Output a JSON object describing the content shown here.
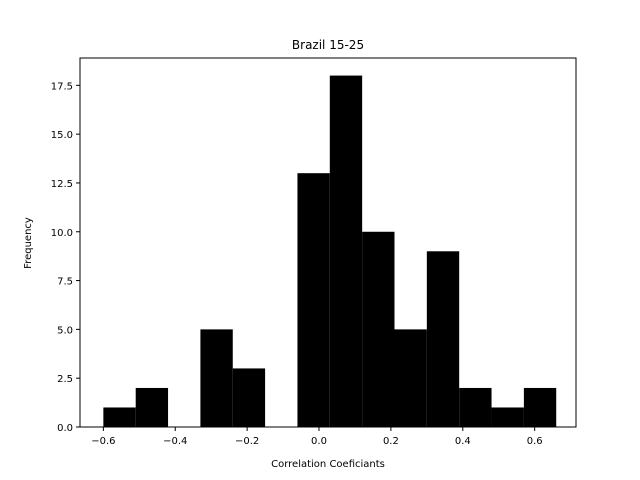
{
  "chart_data": {
    "type": "bar",
    "title": "Brazil 15-25",
    "xlabel": "Correlation Coeficiants",
    "ylabel": "Frequency",
    "bin_edges": [
      -0.6,
      -0.51,
      -0.42,
      -0.33,
      -0.24,
      -0.15,
      -0.06,
      0.03,
      0.12,
      0.21,
      0.3,
      0.39,
      0.48,
      0.57,
      0.66
    ],
    "values": [
      1,
      2,
      0,
      5,
      3,
      0,
      13,
      18,
      10,
      5,
      9,
      2,
      1,
      2
    ],
    "xlim": [
      -0.665,
      0.715
    ],
    "ylim": [
      0,
      18.9
    ],
    "xticks": [
      -0.6,
      -0.4,
      -0.2,
      0.0,
      0.2,
      0.4,
      0.6
    ],
    "xtick_labels": [
      "−0.6",
      "−0.4",
      "−0.2",
      "0.0",
      "0.2",
      "0.4",
      "0.6"
    ],
    "yticks": [
      0,
      2.5,
      5,
      7.5,
      10,
      12.5,
      15,
      17.5
    ],
    "ytick_labels": [
      "0.0",
      "2.5",
      "5.0",
      "7.5",
      "10.0",
      "12.5",
      "15.0",
      "17.5"
    ],
    "bar_color": "#000000",
    "grid": false,
    "legend": false
  }
}
